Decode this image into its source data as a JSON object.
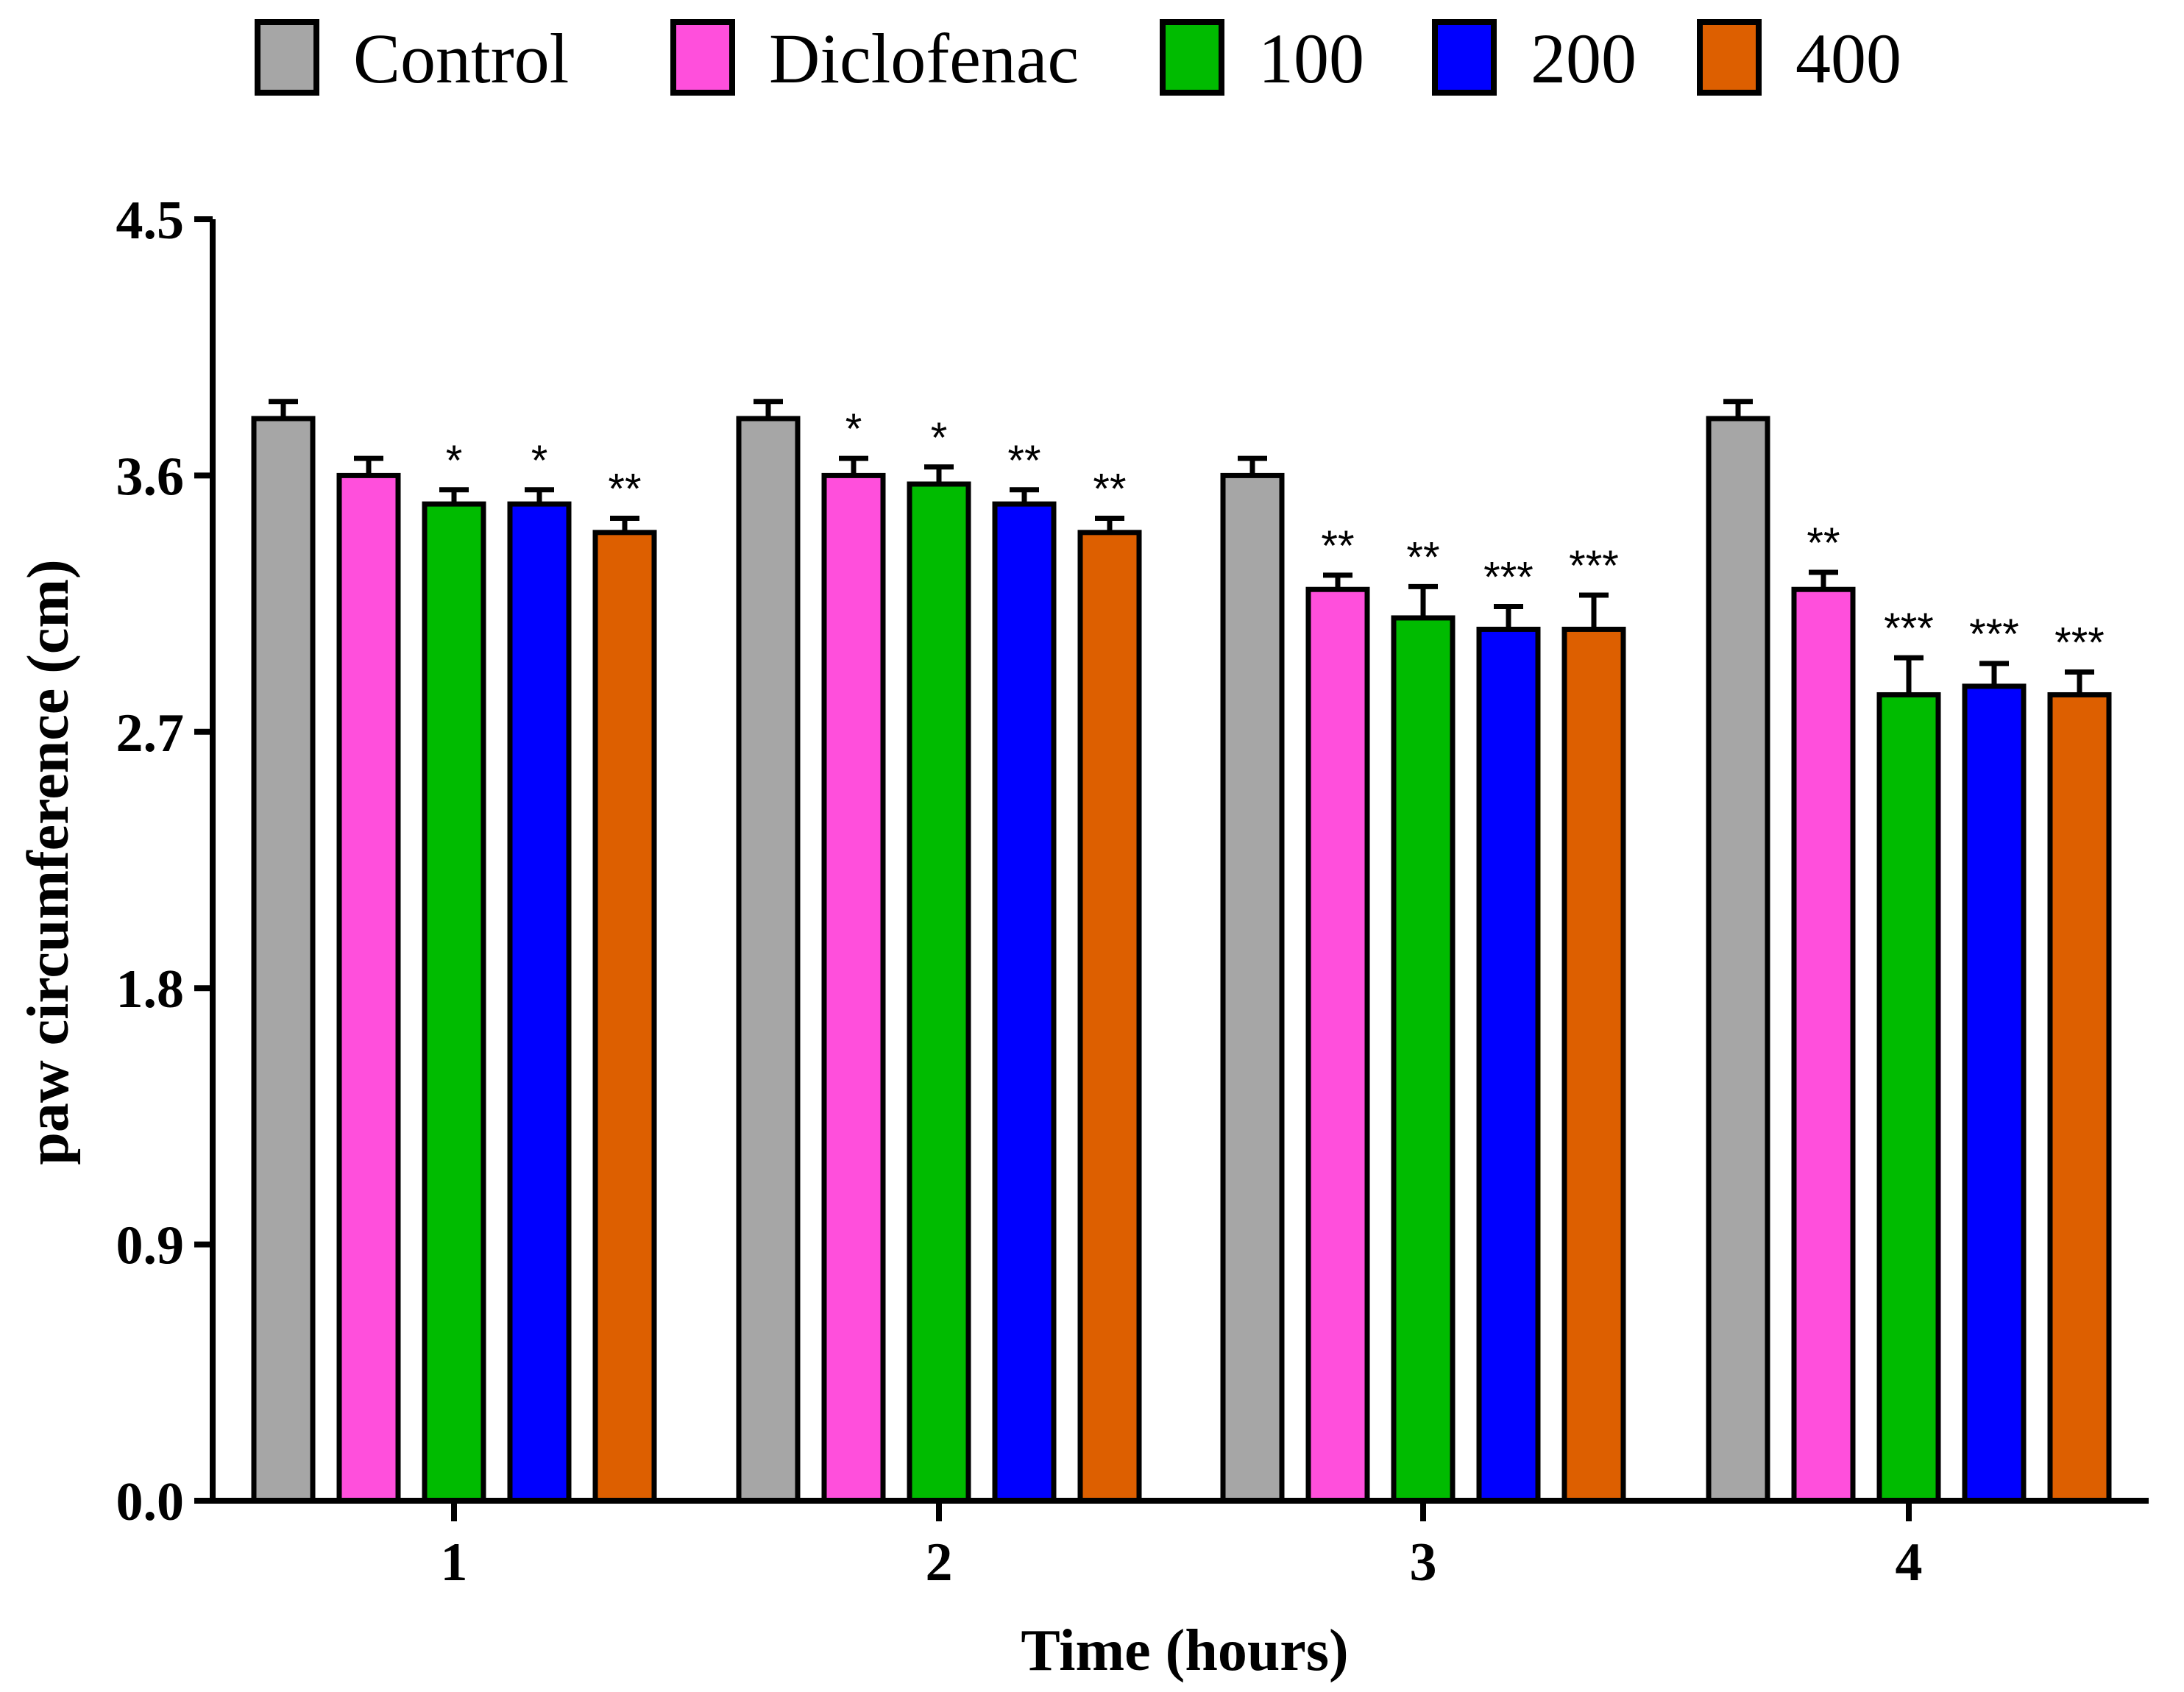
{
  "chart_data": {
    "type": "bar",
    "title": "",
    "xlabel": "Time (hours)",
    "ylabel": "paw circumference (cm)",
    "ylim": [
      0,
      4.5
    ],
    "yticks": [
      "0.0",
      "0.9",
      "1.8",
      "2.7",
      "3.6",
      "4.5"
    ],
    "ytick_values": [
      0,
      0.9,
      1.8,
      2.7,
      3.6,
      4.5
    ],
    "categories": [
      "1",
      "2",
      "3",
      "4"
    ],
    "legend_position": "top",
    "series": [
      {
        "name": "Control",
        "color": "#a6a6a6",
        "values": [
          3.8,
          3.8,
          3.6,
          3.8
        ],
        "errors": [
          0.06,
          0.06,
          0.06,
          0.06
        ],
        "significance": [
          "",
          "",
          "",
          ""
        ]
      },
      {
        "name": "Diclofenac",
        "color": "#ff4fdc",
        "values": [
          3.6,
          3.6,
          3.2,
          3.2
        ],
        "errors": [
          0.06,
          0.06,
          0.05,
          0.06
        ],
        "significance": [
          "",
          "*",
          "**",
          "**"
        ]
      },
      {
        "name": "100",
        "color": "#00bb00",
        "values": [
          3.5,
          3.57,
          3.1,
          2.83
        ],
        "errors": [
          0.05,
          0.06,
          0.11,
          0.13
        ],
        "significance": [
          "*",
          "*",
          "**",
          "***"
        ]
      },
      {
        "name": "200",
        "color": "#0000ff",
        "values": [
          3.5,
          3.5,
          3.06,
          2.86
        ],
        "errors": [
          0.05,
          0.05,
          0.08,
          0.08
        ],
        "significance": [
          "*",
          "**",
          "***",
          "***"
        ]
      },
      {
        "name": "400",
        "color": "#dd5f00",
        "values": [
          3.4,
          3.4,
          3.06,
          2.83
        ],
        "errors": [
          0.05,
          0.05,
          0.12,
          0.08
        ],
        "significance": [
          "**",
          "**",
          "***",
          "***"
        ]
      }
    ]
  }
}
